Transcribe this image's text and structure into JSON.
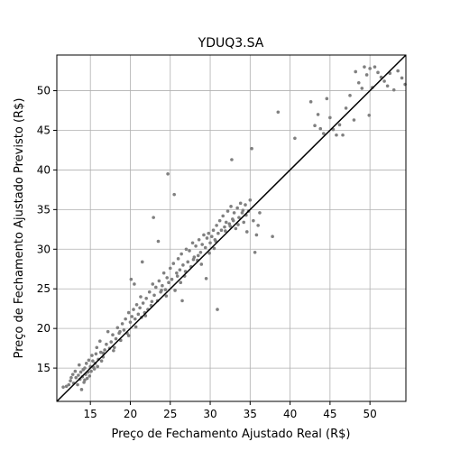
{
  "chart_data": {
    "type": "scatter",
    "title": "YDUQ3.SA",
    "xlabel": "Preço de Fechamento Ajustado Real (R$)",
    "ylabel": "Preço de Fechamento Ajustado Previsto (R$)",
    "xlim": [
      10.8,
      54.5
    ],
    "ylim": [
      10.8,
      54.5
    ],
    "xticks": [
      15,
      20,
      25,
      30,
      35,
      40,
      45,
      50
    ],
    "yticks": [
      15,
      20,
      25,
      30,
      35,
      40,
      45,
      50
    ],
    "xtick_labels": [
      "15",
      "20",
      "25",
      "30",
      "35",
      "40",
      "45",
      "50"
    ],
    "ytick_labels": [
      "15",
      "20",
      "25",
      "30",
      "35",
      "40",
      "45",
      "50"
    ],
    "grid": true,
    "reference_line": "y = x",
    "point_color": "#808080",
    "line_color": "#000000",
    "points": [
      [
        11.6,
        12.6
      ],
      [
        12.0,
        12.7
      ],
      [
        12.3,
        12.9
      ],
      [
        12.5,
        13.4
      ],
      [
        12.8,
        14.2
      ],
      [
        12.9,
        13.1
      ],
      [
        13.1,
        14.6
      ],
      [
        13.2,
        13.8
      ],
      [
        13.4,
        12.9
      ],
      [
        13.5,
        14.1
      ],
      [
        13.6,
        15.4
      ],
      [
        13.7,
        13.6
      ],
      [
        13.8,
        14.5
      ],
      [
        13.9,
        12.3
      ],
      [
        14.0,
        13.9
      ],
      [
        14.1,
        14.8
      ],
      [
        14.2,
        13.2
      ],
      [
        14.3,
        15.0
      ],
      [
        14.4,
        14.2
      ],
      [
        14.5,
        15.6
      ],
      [
        14.6,
        13.7
      ],
      [
        14.7,
        14.5
      ],
      [
        14.8,
        16.0
      ],
      [
        14.9,
        14.0
      ],
      [
        15.0,
        15.2
      ],
      [
        15.1,
        14.6
      ],
      [
        15.2,
        16.6
      ],
      [
        15.3,
        15.9
      ],
      [
        15.5,
        14.9
      ],
      [
        15.6,
        15.6
      ],
      [
        15.7,
        16.8
      ],
      [
        15.8,
        17.6
      ],
      [
        15.9,
        15.2
      ],
      [
        16.0,
        16.1
      ],
      [
        16.2,
        18.4
      ],
      [
        16.3,
        17.0
      ],
      [
        16.4,
        15.9
      ],
      [
        16.6,
        16.4
      ],
      [
        16.8,
        17.3
      ],
      [
        17.0,
        18.0
      ],
      [
        17.2,
        19.6
      ],
      [
        17.4,
        17.5
      ],
      [
        17.6,
        18.3
      ],
      [
        17.8,
        19.2
      ],
      [
        18.0,
        17.6
      ],
      [
        18.2,
        18.7
      ],
      [
        18.4,
        20.1
      ],
      [
        18.6,
        19.4
      ],
      [
        18.8,
        18.5
      ],
      [
        19.0,
        20.6
      ],
      [
        19.2,
        19.8
      ],
      [
        19.4,
        21.2
      ],
      [
        19.6,
        19.4
      ],
      [
        19.8,
        22.0
      ],
      [
        20.0,
        20.8
      ],
      [
        20.1,
        26.2
      ],
      [
        20.2,
        21.5
      ],
      [
        20.4,
        22.4
      ],
      [
        20.5,
        25.6
      ],
      [
        20.6,
        21.2
      ],
      [
        20.8,
        23.0
      ],
      [
        21.0,
        21.8
      ],
      [
        21.2,
        22.6
      ],
      [
        21.3,
        24.0
      ],
      [
        21.4,
        21.4
      ],
      [
        21.5,
        28.4
      ],
      [
        21.6,
        23.2
      ],
      [
        21.8,
        22.0
      ],
      [
        22.0,
        23.8
      ],
      [
        22.2,
        22.4
      ],
      [
        22.4,
        24.6
      ],
      [
        22.6,
        22.9
      ],
      [
        22.8,
        25.6
      ],
      [
        22.9,
        34.0
      ],
      [
        23.0,
        24.2
      ],
      [
        23.2,
        25.2
      ],
      [
        23.4,
        23.5
      ],
      [
        23.5,
        31.0
      ],
      [
        23.6,
        26.0
      ],
      [
        23.8,
        24.6
      ],
      [
        24.0,
        25.4
      ],
      [
        24.2,
        27.0
      ],
      [
        24.4,
        24.9
      ],
      [
        24.6,
        26.4
      ],
      [
        24.7,
        39.5
      ],
      [
        24.8,
        25.8
      ],
      [
        25.0,
        27.6
      ],
      [
        25.2,
        26.2
      ],
      [
        25.4,
        28.2
      ],
      [
        25.5,
        36.9
      ],
      [
        25.6,
        24.8
      ],
      [
        25.8,
        27.0
      ],
      [
        26.0,
        28.8
      ],
      [
        26.2,
        27.4
      ],
      [
        26.4,
        29.4
      ],
      [
        26.5,
        23.5
      ],
      [
        26.6,
        28.0
      ],
      [
        26.8,
        26.6
      ],
      [
        27.0,
        30.0
      ],
      [
        27.2,
        28.4
      ],
      [
        27.4,
        29.8
      ],
      [
        27.6,
        27.8
      ],
      [
        27.8,
        30.8
      ],
      [
        28.0,
        29.0
      ],
      [
        28.2,
        30.4
      ],
      [
        28.4,
        28.6
      ],
      [
        28.6,
        31.2
      ],
      [
        28.8,
        29.6
      ],
      [
        29.0,
        30.6
      ],
      [
        29.2,
        31.8
      ],
      [
        29.4,
        30.2
      ],
      [
        29.5,
        26.3
      ],
      [
        29.6,
        31.4
      ],
      [
        29.8,
        32.0
      ],
      [
        30.0,
        30.8
      ],
      [
        30.2,
        31.6
      ],
      [
        30.4,
        32.4
      ],
      [
        30.6,
        31.2
      ],
      [
        30.8,
        33.0
      ],
      [
        30.9,
        22.4
      ],
      [
        31.0,
        32.0
      ],
      [
        31.2,
        33.6
      ],
      [
        31.4,
        32.4
      ],
      [
        31.6,
        34.2
      ],
      [
        31.8,
        32.8
      ],
      [
        32.0,
        33.4
      ],
      [
        32.2,
        34.8
      ],
      [
        32.4,
        33.2
      ],
      [
        32.6,
        35.4
      ],
      [
        32.7,
        41.3
      ],
      [
        32.8,
        33.8
      ],
      [
        33.0,
        34.6
      ],
      [
        33.2,
        32.6
      ],
      [
        33.4,
        35.2
      ],
      [
        33.6,
        34.0
      ],
      [
        33.8,
        35.8
      ],
      [
        34.0,
        34.6
      ],
      [
        34.2,
        33.4
      ],
      [
        34.4,
        35.6
      ],
      [
        34.6,
        32.2
      ],
      [
        34.8,
        34.8
      ],
      [
        35.0,
        36.2
      ],
      [
        35.2,
        42.7
      ],
      [
        35.4,
        33.6
      ],
      [
        35.6,
        29.6
      ],
      [
        35.8,
        31.8
      ],
      [
        36.0,
        33.0
      ],
      [
        36.2,
        34.6
      ],
      [
        37.8,
        31.6
      ],
      [
        38.5,
        47.3
      ],
      [
        40.6,
        44.0
      ],
      [
        42.6,
        48.6
      ],
      [
        43.1,
        45.6
      ],
      [
        43.5,
        47.0
      ],
      [
        43.8,
        45.2
      ],
      [
        44.2,
        44.6
      ],
      [
        44.6,
        49.0
      ],
      [
        45.0,
        46.6
      ],
      [
        45.4,
        45.1
      ],
      [
        45.8,
        44.4
      ],
      [
        46.2,
        45.7
      ],
      [
        46.6,
        44.4
      ],
      [
        47.0,
        47.8
      ],
      [
        47.5,
        49.4
      ],
      [
        48.0,
        46.3
      ],
      [
        48.2,
        52.4
      ],
      [
        48.6,
        51.0
      ],
      [
        49.0,
        50.3
      ],
      [
        49.3,
        53.0
      ],
      [
        49.6,
        52.0
      ],
      [
        49.9,
        46.9
      ],
      [
        50.0,
        52.8
      ],
      [
        50.3,
        50.4
      ],
      [
        50.6,
        53.0
      ],
      [
        51.0,
        52.3
      ],
      [
        51.4,
        51.7
      ],
      [
        51.8,
        51.2
      ],
      [
        52.2,
        50.6
      ],
      [
        52.5,
        52.2
      ],
      [
        53.0,
        50.1
      ],
      [
        53.5,
        52.5
      ],
      [
        54.0,
        51.6
      ],
      [
        54.4,
        50.8
      ],
      [
        19.8,
        19.1
      ],
      [
        23.9,
        24.8
      ],
      [
        26.9,
        27.2
      ],
      [
        28.9,
        28.1
      ],
      [
        30.7,
        31.0
      ],
      [
        32.9,
        33.6
      ],
      [
        34.1,
        34.9
      ],
      [
        15.4,
        15.1
      ],
      [
        17.9,
        17.2
      ],
      [
        21.9,
        21.6
      ],
      [
        25.9,
        26.6
      ],
      [
        27.9,
        28.7
      ],
      [
        29.9,
        29.5
      ],
      [
        31.9,
        32.3
      ],
      [
        33.5,
        33.1
      ],
      [
        12.6,
        13.8
      ],
      [
        14.3,
        13.5
      ],
      [
        16.6,
        16.9
      ],
      [
        18.7,
        19.6
      ],
      [
        20.7,
        20.2
      ],
      [
        22.7,
        23.4
      ],
      [
        24.5,
        24.1
      ],
      [
        26.3,
        25.8
      ],
      [
        28.5,
        29.2
      ],
      [
        30.5,
        30.1
      ],
      [
        32.5,
        32.9
      ],
      [
        34.5,
        34.3
      ]
    ]
  }
}
